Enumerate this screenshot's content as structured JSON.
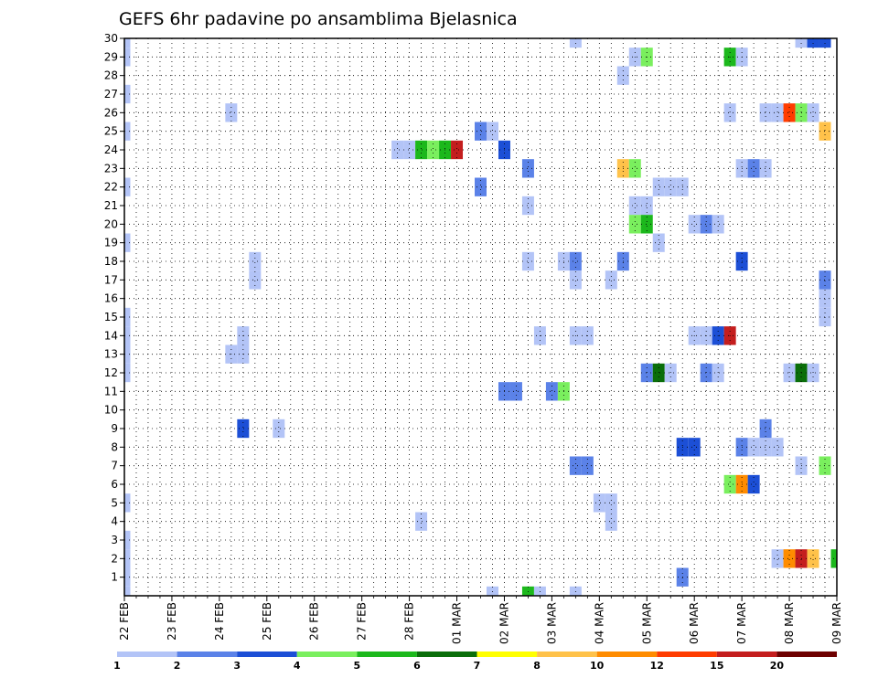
{
  "chart_data": {
    "type": "heatmap",
    "title": "GEFS 6hr padavine po ansamblima Bjelasnica",
    "xlabel": "",
    "ylabel": "",
    "y_ticks": [
      "1",
      "2",
      "3",
      "4",
      "5",
      "6",
      "7",
      "8",
      "9",
      "10",
      "11",
      "12",
      "13",
      "14",
      "15",
      "16",
      "17",
      "18",
      "19",
      "20",
      "21",
      "22",
      "23",
      "24",
      "25",
      "26",
      "27",
      "28",
      "29",
      "30"
    ],
    "x_ticks": [
      "22 FEB",
      "23 FEB",
      "24 FEB",
      "25 FEB",
      "26 FEB",
      "27 FEB",
      "28 FEB",
      "01 MAR",
      "02 MAR",
      "03 MAR",
      "04 MAR",
      "05 MAR",
      "06 MAR",
      "07 MAR",
      "08 MAR",
      "09 MAR"
    ],
    "x_range_steps": [
      0,
      60
    ],
    "y_range_members": [
      0,
      30
    ],
    "step_hours": 6,
    "legend": {
      "labels": [
        "1",
        "2",
        "3",
        "4",
        "5",
        "6",
        "7",
        "8",
        "10",
        "12",
        "15",
        "20"
      ],
      "colors": [
        "#b3c4f7",
        "#5b82e8",
        "#1c4fd6",
        "#7aef5e",
        "#1cb81c",
        "#0a6e0a",
        "#ffff00",
        "#ffc24a",
        "#ff8c00",
        "#ff3c00",
        "#c41e1e",
        "#6e0000"
      ]
    },
    "cells": [
      {
        "s": 0,
        "m": 30,
        "c": 1
      },
      {
        "s": 0,
        "m": 29,
        "c": 1
      },
      {
        "s": 0,
        "m": 27,
        "c": 1
      },
      {
        "s": 0,
        "m": 25,
        "c": 1
      },
      {
        "s": 0,
        "m": 22,
        "c": 1
      },
      {
        "s": 0,
        "m": 19,
        "c": 1
      },
      {
        "s": 0,
        "m": 15,
        "c": 1
      },
      {
        "s": 0,
        "m": 14,
        "c": 1
      },
      {
        "s": 0,
        "m": 13,
        "c": 1
      },
      {
        "s": 0,
        "m": 12,
        "c": 1
      },
      {
        "s": 0,
        "m": 5,
        "c": 1
      },
      {
        "s": 0,
        "m": 3,
        "c": 1
      },
      {
        "s": 0,
        "m": 2,
        "c": 1
      },
      {
        "s": 0,
        "m": 1,
        "c": 1
      },
      {
        "s": 0,
        "m": 0,
        "c": 1
      },
      {
        "s": 9,
        "m": 26,
        "c": 1
      },
      {
        "s": 9,
        "m": 13,
        "c": 1
      },
      {
        "s": 10,
        "m": 13,
        "c": 1
      },
      {
        "s": 10,
        "m": 14,
        "c": 1
      },
      {
        "s": 10,
        "m": 9,
        "c": 3
      },
      {
        "s": 11,
        "m": 18,
        "c": 1
      },
      {
        "s": 11,
        "m": 17,
        "c": 1
      },
      {
        "s": 13,
        "m": 9,
        "c": 1
      },
      {
        "s": 23,
        "m": 24,
        "c": 1
      },
      {
        "s": 24,
        "m": 24,
        "c": 1
      },
      {
        "s": 25,
        "m": 24,
        "c": 5
      },
      {
        "s": 26,
        "m": 24,
        "c": 4
      },
      {
        "s": 27,
        "m": 24,
        "c": 5
      },
      {
        "s": 28,
        "m": 24,
        "c": 11
      },
      {
        "s": 25,
        "m": 4,
        "c": 1
      },
      {
        "s": 30,
        "m": 25,
        "c": 2
      },
      {
        "s": 31,
        "m": 25,
        "c": 1
      },
      {
        "s": 30,
        "m": 22,
        "c": 2
      },
      {
        "s": 31,
        "m": 0,
        "c": 1
      },
      {
        "s": 32,
        "m": 24,
        "c": 3
      },
      {
        "s": 32,
        "m": 11,
        "c": 2
      },
      {
        "s": 33,
        "m": 11,
        "c": 2
      },
      {
        "s": 34,
        "m": 0,
        "c": 5
      },
      {
        "s": 35,
        "m": 0,
        "c": 1
      },
      {
        "s": 34,
        "m": 23,
        "c": 2
      },
      {
        "s": 34,
        "m": 21,
        "c": 1
      },
      {
        "s": 34,
        "m": 18,
        "c": 1
      },
      {
        "s": 35,
        "m": 14,
        "c": 1
      },
      {
        "s": 36,
        "m": 11,
        "c": 2
      },
      {
        "s": 37,
        "m": 11,
        "c": 4
      },
      {
        "s": 37,
        "m": 18,
        "c": 1
      },
      {
        "s": 38,
        "m": 18,
        "c": 2
      },
      {
        "s": 38,
        "m": 17,
        "c": 1
      },
      {
        "s": 38,
        "m": 30,
        "c": 1
      },
      {
        "s": 38,
        "m": 14,
        "c": 1
      },
      {
        "s": 38,
        "m": 7,
        "c": 2
      },
      {
        "s": 39,
        "m": 7,
        "c": 2
      },
      {
        "s": 38,
        "m": 0,
        "c": 1
      },
      {
        "s": 39,
        "m": 14,
        "c": 1
      },
      {
        "s": 40,
        "m": 5,
        "c": 1
      },
      {
        "s": 41,
        "m": 5,
        "c": 1
      },
      {
        "s": 41,
        "m": 4,
        "c": 1
      },
      {
        "s": 41,
        "m": 17,
        "c": 1
      },
      {
        "s": 42,
        "m": 28,
        "c": 1
      },
      {
        "s": 42,
        "m": 23,
        "c": 8
      },
      {
        "s": 42,
        "m": 18,
        "c": 2
      },
      {
        "s": 43,
        "m": 29,
        "c": 1
      },
      {
        "s": 44,
        "m": 29,
        "c": 4
      },
      {
        "s": 43,
        "m": 23,
        "c": 4
      },
      {
        "s": 43,
        "m": 21,
        "c": 1
      },
      {
        "s": 44,
        "m": 21,
        "c": 1
      },
      {
        "s": 43,
        "m": 20,
        "c": 4
      },
      {
        "s": 44,
        "m": 20,
        "c": 5
      },
      {
        "s": 44,
        "m": 12,
        "c": 2
      },
      {
        "s": 45,
        "m": 12,
        "c": 6
      },
      {
        "s": 46,
        "m": 12,
        "c": 1
      },
      {
        "s": 45,
        "m": 22,
        "c": 1
      },
      {
        "s": 46,
        "m": 22,
        "c": 1
      },
      {
        "s": 47,
        "m": 22,
        "c": 1
      },
      {
        "s": 45,
        "m": 19,
        "c": 1
      },
      {
        "s": 47,
        "m": 8,
        "c": 3
      },
      {
        "s": 48,
        "m": 8,
        "c": 3
      },
      {
        "s": 47,
        "m": 1,
        "c": 2
      },
      {
        "s": 48,
        "m": 14,
        "c": 1
      },
      {
        "s": 49,
        "m": 14,
        "c": 1
      },
      {
        "s": 48,
        "m": 20,
        "c": 1
      },
      {
        "s": 49,
        "m": 20,
        "c": 2
      },
      {
        "s": 50,
        "m": 20,
        "c": 1
      },
      {
        "s": 49,
        "m": 12,
        "c": 2
      },
      {
        "s": 50,
        "m": 12,
        "c": 1
      },
      {
        "s": 50,
        "m": 14,
        "c": 3
      },
      {
        "s": 51,
        "m": 14,
        "c": 11
      },
      {
        "s": 51,
        "m": 29,
        "c": 5
      },
      {
        "s": 52,
        "m": 29,
        "c": 1
      },
      {
        "s": 51,
        "m": 26,
        "c": 1
      },
      {
        "s": 51,
        "m": 6,
        "c": 4
      },
      {
        "s": 52,
        "m": 6,
        "c": 9
      },
      {
        "s": 53,
        "m": 6,
        "c": 3
      },
      {
        "s": 52,
        "m": 23,
        "c": 1
      },
      {
        "s": 53,
        "m": 23,
        "c": 2
      },
      {
        "s": 54,
        "m": 23,
        "c": 1
      },
      {
        "s": 52,
        "m": 18,
        "c": 3
      },
      {
        "s": 52,
        "m": 8,
        "c": 2
      },
      {
        "s": 53,
        "m": 8,
        "c": 1
      },
      {
        "s": 54,
        "m": 8,
        "c": 1
      },
      {
        "s": 55,
        "m": 8,
        "c": 1
      },
      {
        "s": 54,
        "m": 9,
        "c": 2
      },
      {
        "s": 54,
        "m": 26,
        "c": 1
      },
      {
        "s": 55,
        "m": 26,
        "c": 1
      },
      {
        "s": 56,
        "m": 26,
        "c": 10
      },
      {
        "s": 57,
        "m": 26,
        "c": 4
      },
      {
        "s": 58,
        "m": 26,
        "c": 1
      },
      {
        "s": 55,
        "m": 2,
        "c": 1
      },
      {
        "s": 56,
        "m": 2,
        "c": 9
      },
      {
        "s": 57,
        "m": 2,
        "c": 11
      },
      {
        "s": 58,
        "m": 2,
        "c": 8
      },
      {
        "s": 56,
        "m": 12,
        "c": 1
      },
      {
        "s": 57,
        "m": 12,
        "c": 6
      },
      {
        "s": 58,
        "m": 12,
        "c": 1
      },
      {
        "s": 57,
        "m": 7,
        "c": 1
      },
      {
        "s": 57,
        "m": 30,
        "c": 1
      },
      {
        "s": 58,
        "m": 30,
        "c": 3
      },
      {
        "s": 59,
        "m": 30,
        "c": 3
      },
      {
        "s": 59,
        "m": 25,
        "c": 8
      },
      {
        "s": 59,
        "m": 17,
        "c": 2
      },
      {
        "s": 59,
        "m": 16,
        "c": 1
      },
      {
        "s": 59,
        "m": 15,
        "c": 1
      },
      {
        "s": 59,
        "m": 7,
        "c": 4
      },
      {
        "s": 60,
        "m": 2,
        "c": 5
      }
    ]
  }
}
